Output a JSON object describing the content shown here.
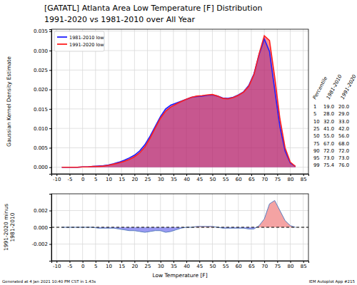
{
  "chart_data": [
    {
      "type": "area",
      "title": "[GATATL] Atlanta Area Low Temperature [F] Distribution",
      "subtitle": "1991-2020 vs 1981-2010 over All Year",
      "ylabel": "Gaussian Kernel Density Estimate",
      "x": [
        -8,
        -6,
        -4,
        -2,
        0,
        2,
        4,
        6,
        8,
        10,
        12,
        14,
        16,
        18,
        20,
        22,
        24,
        26,
        28,
        30,
        32,
        34,
        36,
        38,
        40,
        42,
        44,
        46,
        48,
        50,
        52,
        54,
        56,
        58,
        60,
        62,
        64,
        66,
        68,
        70,
        72,
        74,
        76,
        78,
        80,
        82
      ],
      "series": [
        {
          "name": "1981-2010 low",
          "color": "#1f1fff",
          "values": [
            0,
            0,
            0,
            0,
            0.0001,
            0.0001,
            0.0002,
            0.0003,
            0.0004,
            0.0006,
            0.0009,
            0.0013,
            0.0018,
            0.0024,
            0.0031,
            0.0042,
            0.0058,
            0.008,
            0.0105,
            0.013,
            0.015,
            0.016,
            0.0165,
            0.017,
            0.0175,
            0.018,
            0.0182,
            0.0183,
            0.0185,
            0.0186,
            0.0183,
            0.0178,
            0.0177,
            0.018,
            0.0186,
            0.0194,
            0.021,
            0.024,
            0.029,
            0.033,
            0.0298,
            0.02,
            0.0105,
            0.0042,
            0.0011,
            0.0002
          ]
        },
        {
          "name": "1991-2020 low",
          "color": "#ff1f1f",
          "values": [
            0,
            0,
            0,
            0,
            0.0001,
            0.0001,
            0.0002,
            0.0002,
            0.0003,
            0.0005,
            0.0008,
            0.0011,
            0.0015,
            0.002,
            0.0027,
            0.0037,
            0.0052,
            0.0075,
            0.0101,
            0.0126,
            0.0144,
            0.0155,
            0.0162,
            0.0169,
            0.0175,
            0.018,
            0.0183,
            0.0184,
            0.0186,
            0.0187,
            0.0183,
            0.0177,
            0.0176,
            0.0179,
            0.0185,
            0.0193,
            0.0208,
            0.0238,
            0.0292,
            0.0338,
            0.0326,
            0.0232,
            0.0125,
            0.005,
            0.0013,
            0.0002
          ]
        }
      ],
      "xlim": [
        -12,
        87
      ],
      "xticks": [
        -10,
        -5,
        0,
        5,
        10,
        15,
        20,
        25,
        30,
        35,
        40,
        45,
        50,
        55,
        60,
        65,
        70,
        75,
        80,
        85
      ],
      "ylim": [
        -0.0017,
        0.0355
      ],
      "yticks": [
        {
          "value": 0,
          "label": "0.000"
        },
        0.005,
        {
          "value": 0.01,
          "label": "0.010"
        },
        0.015,
        {
          "value": 0.02,
          "label": "0.020"
        },
        0.025,
        {
          "value": 0.03,
          "label": "0.030"
        },
        0.035
      ],
      "grid": true,
      "legend": "upper left"
    },
    {
      "type": "area",
      "xlabel": "Low Temperature [F]",
      "ylabel": [
        "1991-2020 minus",
        "1981-2010"
      ],
      "color": "#5a7fc0",
      "x": [
        -8,
        -6,
        -4,
        -2,
        0,
        2,
        4,
        6,
        8,
        10,
        12,
        14,
        16,
        18,
        20,
        22,
        24,
        26,
        28,
        30,
        32,
        34,
        36,
        38,
        40,
        42,
        44,
        46,
        48,
        50,
        52,
        54,
        56,
        58,
        60,
        62,
        64,
        66,
        68,
        70,
        72,
        74,
        76,
        78,
        80,
        82
      ],
      "values": [
        0,
        0,
        0,
        0,
        0,
        0,
        0,
        -0.0001,
        -0.0001,
        -0.0001,
        -0.0001,
        -0.0002,
        -0.0003,
        -0.0004,
        -0.0004,
        -0.0005,
        -0.0006,
        -0.0005,
        -0.0004,
        -0.0004,
        -0.0006,
        -0.0005,
        -0.0003,
        -0.0001,
        0,
        0,
        0.0001,
        0.0001,
        0.0001,
        0.0001,
        0,
        -0.0001,
        -0.0001,
        -0.0001,
        -0.0001,
        -0.0001,
        -0.0002,
        -0.0002,
        0.0002,
        0.001,
        0.0028,
        0.0032,
        0.002,
        0.0008,
        0.0002,
        0
      ],
      "xlim": [
        -12,
        87
      ],
      "xticks": [
        -10,
        -5,
        0,
        5,
        10,
        15,
        20,
        25,
        30,
        35,
        40,
        45,
        50,
        55,
        60,
        65,
        70,
        75,
        80,
        85
      ],
      "ylim": [
        -0.004,
        0.004
      ],
      "yticks": [
        -0.002,
        {
          "value": 0,
          "label": "0.000"
        },
        0.002
      ],
      "grid": true
    }
  ],
  "percentile_table": {
    "headers": [
      "Percentile",
      "1981-2010",
      "1991-2020"
    ],
    "rows": [
      [
        "1",
        "19.0",
        "20.0"
      ],
      [
        "5",
        "28.0",
        "29.0"
      ],
      [
        "10",
        "32.0",
        "33.0"
      ],
      [
        "25",
        "41.0",
        "42.0"
      ],
      [
        "50",
        "55.0",
        "56.0"
      ],
      [
        "75",
        "67.0",
        "68.0"
      ],
      [
        "90",
        "72.0",
        "72.0"
      ],
      [
        "95",
        "73.0",
        "73.0"
      ],
      [
        "99",
        "75.4",
        "76.0"
      ]
    ]
  },
  "footer": {
    "left": "Generated at 4 Jan 2021 10:40 PM CST in 1.43s",
    "right": "IEM Autoplot App #215"
  }
}
